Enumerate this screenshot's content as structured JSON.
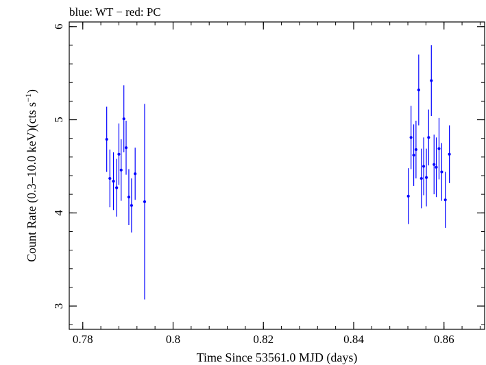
{
  "chart_data": {
    "type": "scatter",
    "title": "blue: WT − red: PC",
    "xlabel": "Time Since 53561.0 MJD (days)",
    "ylabel_main": "Count Rate (0.3–10.0 keV)(cts s",
    "ylabel_sup": "−1",
    "ylabel_close": ")",
    "xlim": [
      0.777,
      0.869
    ],
    "ylim": [
      2.75,
      6.05
    ],
    "x_ticks": [
      0.78,
      0.8,
      0.82,
      0.84,
      0.86
    ],
    "x_tick_labels": [
      "0.78",
      "0.8",
      "0.82",
      "0.84",
      "0.86"
    ],
    "y_ticks": [
      3,
      4,
      5,
      6
    ],
    "y_tick_labels": [
      "3",
      "4",
      "5",
      "6"
    ],
    "grid": false,
    "series": [
      {
        "color": "#0000ff",
        "points": [
          {
            "x": 0.7853,
            "y": 4.79,
            "err": 0.35
          },
          {
            "x": 0.786,
            "y": 4.37,
            "err": 0.31
          },
          {
            "x": 0.7868,
            "y": 4.34,
            "err": 0.31
          },
          {
            "x": 0.7875,
            "y": 4.27,
            "err": 0.31
          },
          {
            "x": 0.788,
            "y": 4.63,
            "err": 0.33
          },
          {
            "x": 0.7885,
            "y": 4.46,
            "err": 0.33
          },
          {
            "x": 0.7891,
            "y": 5.01,
            "err": 0.36
          },
          {
            "x": 0.7896,
            "y": 4.7,
            "err": 0.29
          },
          {
            "x": 0.7902,
            "y": 4.17,
            "err": 0.3
          },
          {
            "x": 0.7908,
            "y": 4.08,
            "err": 0.29
          },
          {
            "x": 0.7916,
            "y": 4.42,
            "err": 0.28
          },
          {
            "x": 0.7937,
            "y": 4.12,
            "err": 1.05
          },
          {
            "x": 0.8521,
            "y": 4.18,
            "err": 0.3
          },
          {
            "x": 0.8527,
            "y": 4.81,
            "err": 0.34
          },
          {
            "x": 0.8533,
            "y": 4.62,
            "err": 0.33
          },
          {
            "x": 0.8538,
            "y": 4.68,
            "err": 0.31
          },
          {
            "x": 0.8544,
            "y": 5.32,
            "err": 0.38
          },
          {
            "x": 0.855,
            "y": 4.37,
            "err": 0.32
          },
          {
            "x": 0.8555,
            "y": 4.5,
            "err": 0.31
          },
          {
            "x": 0.8561,
            "y": 4.38,
            "err": 0.31
          },
          {
            "x": 0.8566,
            "y": 4.81,
            "err": 0.3
          },
          {
            "x": 0.8572,
            "y": 5.42,
            "err": 0.38
          },
          {
            "x": 0.8578,
            "y": 4.52,
            "err": 0.32
          },
          {
            "x": 0.8583,
            "y": 4.49,
            "err": 0.32
          },
          {
            "x": 0.8589,
            "y": 4.69,
            "err": 0.33
          },
          {
            "x": 0.8595,
            "y": 4.44,
            "err": 0.31
          },
          {
            "x": 0.8603,
            "y": 4.14,
            "err": 0.3
          },
          {
            "x": 0.8612,
            "y": 4.63,
            "err": 0.31
          }
        ]
      }
    ]
  }
}
